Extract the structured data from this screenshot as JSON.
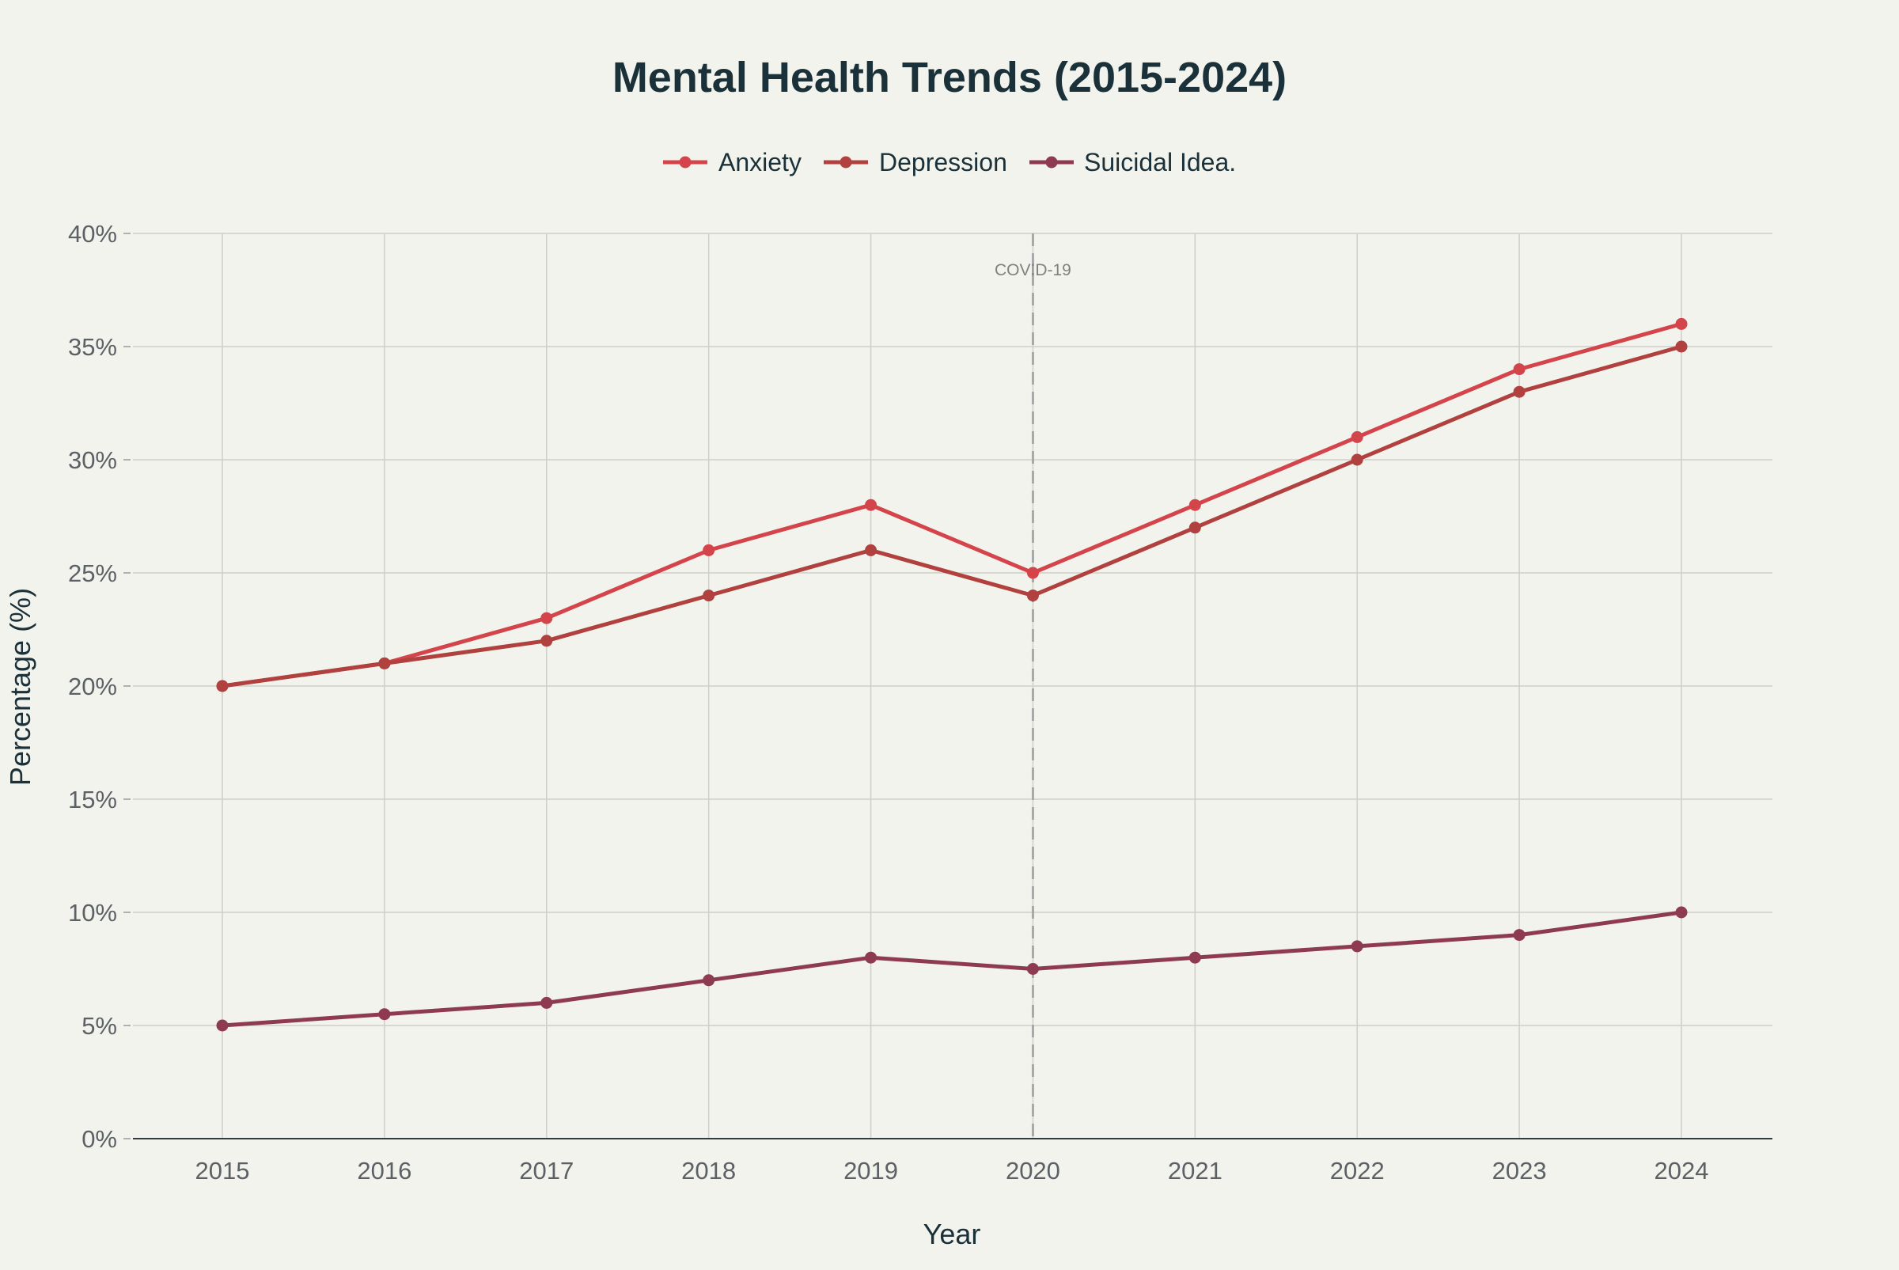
{
  "chart_data": {
    "type": "line",
    "title": "Mental Health Trends (2015-2024)",
    "xlabel": "Year",
    "ylabel": "Percentage (%)",
    "x": [
      2015,
      2016,
      2017,
      2018,
      2019,
      2020,
      2021,
      2022,
      2023,
      2024
    ],
    "x_tick_labels": [
      "2015",
      "2016",
      "2017",
      "2018",
      "2019",
      "2020",
      "2021",
      "2022",
      "2023",
      "2024"
    ],
    "ylim": [
      0,
      40
    ],
    "y_ticks": [
      0,
      5,
      10,
      15,
      20,
      25,
      30,
      35,
      40
    ],
    "y_tick_labels": [
      "0%",
      "5%",
      "10%",
      "15%",
      "20%",
      "25%",
      "30%",
      "35%",
      "40%"
    ],
    "grid": true,
    "legend_position": "top-center",
    "series": [
      {
        "name": "Anxiety",
        "color": "#d4444b",
        "values": [
          20,
          21,
          23,
          26,
          28,
          25,
          28,
          31,
          34,
          36
        ]
      },
      {
        "name": "Depression",
        "color": "#b0413e",
        "values": [
          20,
          21,
          22,
          24,
          26,
          24,
          27,
          30,
          33,
          35
        ]
      },
      {
        "name": "Suicidal Idea.",
        "color": "#8e3b52",
        "values": [
          5,
          5.5,
          6,
          7,
          8,
          7.5,
          8,
          8.5,
          9,
          10
        ]
      }
    ],
    "annotations": [
      {
        "x": 2020,
        "text": "COVID-19",
        "style": "dashed-vertical-line",
        "color": "#a8a8a8"
      }
    ]
  }
}
